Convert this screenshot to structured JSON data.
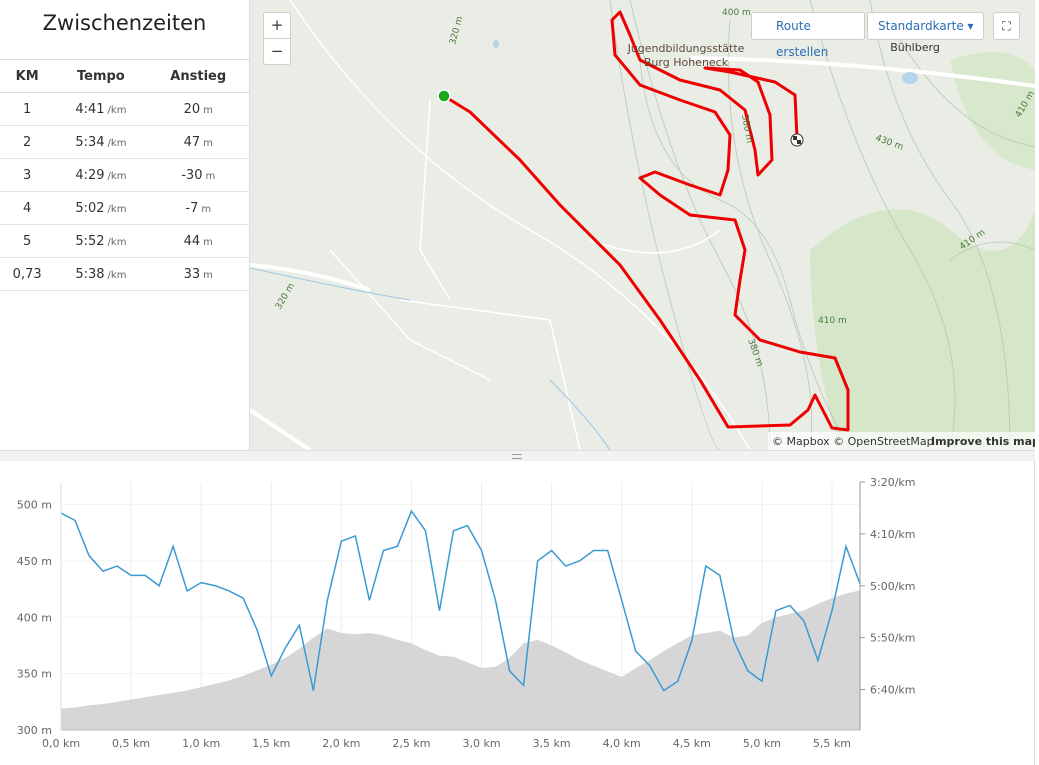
{
  "splits": {
    "title": "Zwischenzeiten",
    "headers": [
      "KM",
      "Tempo",
      "Anstieg"
    ],
    "rows": [
      {
        "km": "1",
        "tempo": "4:41",
        "tempo_unit": "/km",
        "anstieg": "20",
        "anstieg_unit": "m"
      },
      {
        "km": "2",
        "tempo": "5:34",
        "tempo_unit": "/km",
        "anstieg": "47",
        "anstieg_unit": "m"
      },
      {
        "km": "3",
        "tempo": "4:29",
        "tempo_unit": "/km",
        "anstieg": "-30",
        "anstieg_unit": "m"
      },
      {
        "km": "4",
        "tempo": "5:02",
        "tempo_unit": "/km",
        "anstieg": "-7",
        "anstieg_unit": "m"
      },
      {
        "km": "5",
        "tempo": "5:52",
        "tempo_unit": "/km",
        "anstieg": "44",
        "anstieg_unit": "m"
      },
      {
        "km": "0,73",
        "tempo": "5:38",
        "tempo_unit": "/km",
        "anstieg": "33",
        "anstieg_unit": "m"
      }
    ]
  },
  "map": {
    "zoom_in": "+",
    "zoom_out": "−",
    "route_button": "Route erstellen",
    "style_button": "Standardkarte",
    "places": [
      "Jugendbildungsstätte",
      "Burg Hoheneck",
      "Bühlberg"
    ],
    "contours": [
      "400 m",
      "320 m",
      "320 m",
      "380 m",
      "430 m",
      "410 m",
      "410 m",
      "410 m",
      "380 m"
    ],
    "attribution": "© Mapbox © OpenStreetMap",
    "improve": "Improve this map"
  },
  "chart_data": {
    "type": "line",
    "x": [
      0,
      0.1,
      0.2,
      0.3,
      0.4,
      0.5,
      0.6,
      0.7,
      0.8,
      0.9,
      1.0,
      1.1,
      1.2,
      1.3,
      1.4,
      1.5,
      1.6,
      1.7,
      1.8,
      1.9,
      2.0,
      2.1,
      2.2,
      2.3,
      2.4,
      2.5,
      2.6,
      2.7,
      2.8,
      2.9,
      3.0,
      3.1,
      3.2,
      3.3,
      3.4,
      3.5,
      3.6,
      3.7,
      3.8,
      3.9,
      4.0,
      4.1,
      4.2,
      4.3,
      4.4,
      4.5,
      4.6,
      4.7,
      4.8,
      4.9,
      5.0,
      5.1,
      5.2,
      5.3,
      5.4,
      5.5,
      5.6,
      5.7
    ],
    "series": [
      {
        "type": "area",
        "color": "#d6d6d6",
        "values": [
          319,
          320,
          322,
          323,
          325,
          327,
          329,
          331,
          333,
          335,
          338,
          341,
          344,
          348,
          353,
          358,
          364,
          372,
          382,
          390,
          386,
          385,
          386,
          384,
          380,
          377,
          371,
          366,
          365,
          360,
          355,
          356,
          364,
          377,
          380,
          375,
          369,
          362,
          357,
          352,
          347,
          355,
          362,
          370,
          377,
          384,
          386,
          388,
          382,
          384,
          395,
          400,
          403,
          406,
          412,
          417,
          421,
          424
        ]
      },
      {
        "type": "line",
        "axis": "y2",
        "color": "#3a9ad2",
        "values": [
          230,
          237,
          271,
          286,
          281,
          290,
          290,
          300,
          262,
          305,
          297,
          300,
          305,
          312,
          343,
          387,
          360,
          338,
          401,
          314,
          257,
          252,
          314,
          266,
          262,
          228,
          247,
          324,
          247,
          242,
          266,
          314,
          382,
          396,
          276,
          266,
          281,
          276,
          266,
          266,
          314,
          363,
          377,
          401,
          392,
          353,
          281,
          290,
          353,
          382,
          392,
          324,
          319,
          334,
          372,
          324,
          262,
          298
        ]
      }
    ],
    "xlim": [
      0,
      5.7
    ],
    "xticks": [
      {
        "value": 0,
        "label": "0,0 km"
      },
      {
        "value": 0.5,
        "label": "0,5 km"
      },
      {
        "value": 1,
        "label": "1,0 km"
      },
      {
        "value": 1.5,
        "label": "1,5 km"
      },
      {
        "value": 2,
        "label": "2,0 km"
      },
      {
        "value": 2.5,
        "label": "2,5 km"
      },
      {
        "value": 3,
        "label": "3,0 km"
      },
      {
        "value": 3.5,
        "label": "3,5 km"
      },
      {
        "value": 4,
        "label": "4,0 km"
      },
      {
        "value": 4.5,
        "label": "4,5 km"
      },
      {
        "value": 5,
        "label": "5,0 km"
      },
      {
        "value": 5.5,
        "label": "5,5 km"
      }
    ],
    "ylim": [
      300,
      520
    ],
    "yticks": [
      {
        "value": 300,
        "label": "300 m"
      },
      {
        "value": 350,
        "label": "350 m"
      },
      {
        "value": 400,
        "label": "400 m"
      },
      {
        "value": 450,
        "label": "450 m"
      },
      {
        "value": 500,
        "label": "500 m"
      }
    ],
    "y2lim": [
      439,
      200
    ],
    "y2ticks": [
      {
        "value": 200,
        "label": "3:20/km"
      },
      {
        "value": 250,
        "label": "4:10/km"
      },
      {
        "value": 300,
        "label": "5:00/km"
      },
      {
        "value": 350,
        "label": "5:50/km"
      },
      {
        "value": 400,
        "label": "6:40/km"
      }
    ],
    "grid": true
  }
}
